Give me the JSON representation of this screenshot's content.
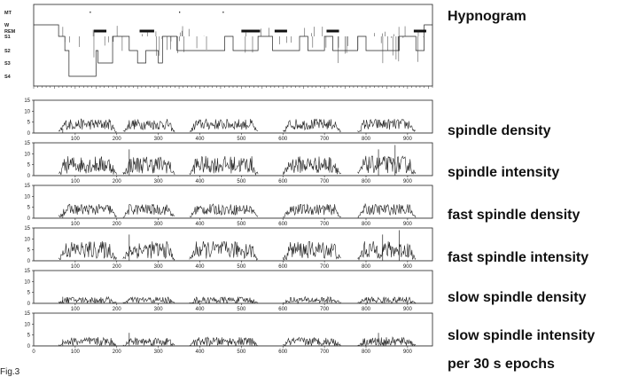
{
  "caption": "Fig.3",
  "footer_label": "per 30 s epochs",
  "hypnogram": {
    "title": "Hypnogram",
    "stage_labels": [
      "MT",
      "W",
      "REM",
      "S1",
      "S2",
      "S3",
      "S4"
    ]
  },
  "chart_data": [
    {
      "type": "line",
      "title": "Hypnogram",
      "y_categories": [
        "MT",
        "W",
        "REM",
        "S1",
        "S2",
        "S3",
        "S4"
      ],
      "xlim": [
        0,
        960
      ],
      "x": [
        0,
        60,
        75,
        85,
        110,
        150,
        155,
        175,
        190,
        230,
        250,
        270,
        300,
        310,
        330,
        345,
        360,
        380,
        420,
        440,
        460,
        480,
        500,
        520,
        540,
        555,
        575,
        600,
        615,
        640,
        660,
        690,
        700,
        720,
        740,
        760,
        780,
        800,
        820,
        860,
        880,
        900,
        920,
        940,
        960
      ],
      "y": [
        "W",
        "S1",
        "S2",
        "S4",
        "S4",
        "S2",
        "S3",
        "S3",
        "S1",
        "S2",
        "S3",
        "S2",
        "S3",
        "S1",
        "S1",
        "S2",
        "S2",
        "S2",
        "S2",
        "S2",
        "S1",
        "S2",
        "S2",
        "S2",
        "S1",
        "S1",
        "S2",
        "S2",
        "S2",
        "S1",
        "S2",
        "S2",
        "S1",
        "S2",
        "S2",
        "S2",
        "S1",
        "S2",
        "S2",
        "S2",
        "S1",
        "S1",
        "S2",
        "W",
        "W"
      ]
    },
    {
      "type": "line",
      "title": "spindle density",
      "ylim": [
        0,
        15
      ],
      "yticks": [
        0,
        5,
        10,
        15
      ],
      "xticks": [
        100,
        200,
        300,
        400,
        500,
        600,
        700,
        800,
        900
      ],
      "xlim": [
        0,
        960
      ],
      "segments": [
        [
          60,
          200
        ],
        [
          215,
          340
        ],
        [
          375,
          540
        ],
        [
          600,
          740
        ],
        [
          780,
          920
        ]
      ],
      "level": 4,
      "amplitude": 2.5,
      "spikes": [
        [
          70,
          2
        ]
      ]
    },
    {
      "type": "line",
      "title": "spindle intensity",
      "ylim": [
        0,
        15
      ],
      "yticks": [
        0,
        5,
        10,
        15
      ],
      "xticks": [
        100,
        200,
        300,
        400,
        500,
        600,
        700,
        800,
        900
      ],
      "xlim": [
        0,
        960
      ],
      "segments": [
        [
          60,
          200
        ],
        [
          215,
          340
        ],
        [
          375,
          540
        ],
        [
          600,
          740
        ],
        [
          780,
          920
        ]
      ],
      "level": 5,
      "amplitude": 4,
      "spikes": [
        [
          230,
          12
        ],
        [
          830,
          12
        ],
        [
          870,
          14
        ]
      ]
    },
    {
      "type": "line",
      "title": "fast spindle density",
      "ylim": [
        0,
        15
      ],
      "yticks": [
        0,
        5,
        10,
        15
      ],
      "xticks": [
        100,
        200,
        300,
        400,
        500,
        600,
        700,
        800,
        900
      ],
      "xlim": [
        0,
        960
      ],
      "segments": [
        [
          60,
          200
        ],
        [
          215,
          340
        ],
        [
          375,
          540
        ],
        [
          600,
          740
        ],
        [
          780,
          920
        ]
      ],
      "level": 4,
      "amplitude": 2.5,
      "spikes": [
        [
          70,
          2
        ]
      ]
    },
    {
      "type": "line",
      "title": "fast spindle intensity",
      "ylim": [
        0,
        15
      ],
      "yticks": [
        0,
        5,
        10,
        15
      ],
      "xticks": [
        100,
        200,
        300,
        400,
        500,
        600,
        700,
        800,
        900
      ],
      "xlim": [
        0,
        960
      ],
      "segments": [
        [
          60,
          200
        ],
        [
          215,
          340
        ],
        [
          375,
          540
        ],
        [
          600,
          740
        ],
        [
          780,
          920
        ]
      ],
      "level": 5,
      "amplitude": 4,
      "spikes": [
        [
          230,
          12
        ],
        [
          840,
          12
        ],
        [
          880,
          14
        ]
      ]
    },
    {
      "type": "line",
      "title": "slow spindle density",
      "ylim": [
        0,
        15
      ],
      "yticks": [
        0,
        5,
        10,
        15
      ],
      "xticks": [
        100,
        200,
        300,
        400,
        500,
        600,
        700,
        800,
        900
      ],
      "xlim": [
        0,
        960
      ],
      "segments": [
        [
          60,
          200
        ],
        [
          215,
          340
        ],
        [
          375,
          540
        ],
        [
          600,
          740
        ],
        [
          780,
          920
        ]
      ],
      "level": 1.5,
      "amplitude": 1.5,
      "spikes": [
        [
          70,
          3
        ]
      ]
    },
    {
      "type": "line",
      "title": "slow spindle intensity",
      "ylim": [
        0,
        15
      ],
      "yticks": [
        0,
        5,
        10,
        15
      ],
      "xticks": [
        100,
        200,
        300,
        400,
        500,
        600,
        700,
        800,
        900
      ],
      "xlim": [
        0,
        960
      ],
      "segments": [
        [
          60,
          200
        ],
        [
          215,
          340
        ],
        [
          375,
          540
        ],
        [
          600,
          740
        ],
        [
          780,
          920
        ]
      ],
      "level": 2,
      "amplitude": 2,
      "spikes": [
        [
          70,
          3
        ],
        [
          230,
          6
        ],
        [
          830,
          6
        ]
      ]
    }
  ]
}
